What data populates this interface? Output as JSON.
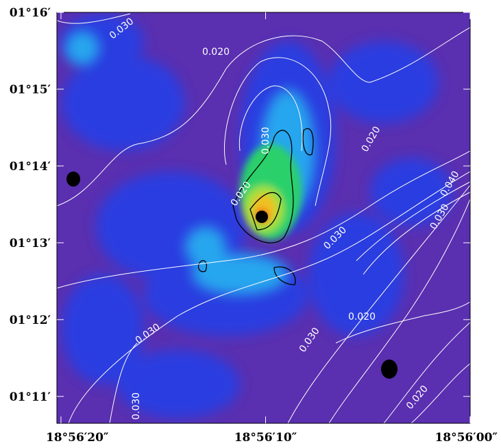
{
  "chart_data": {
    "type": "image",
    "xlim": [
      20.2,
      0
    ],
    "ylim": [
      10.65,
      16
    ],
    "xticks": [
      {
        "value": 20,
        "label": "18°56′20″"
      },
      {
        "value": 10,
        "label": "18°56′10″"
      },
      {
        "value": 0,
        "label": "18°56′00″"
      }
    ],
    "yticks": [
      {
        "value": 16,
        "label": "01°16′"
      },
      {
        "value": 15,
        "label": "01°15′"
      },
      {
        "value": 14,
        "label": "01°14′"
      },
      {
        "value": 13,
        "label": "01°13′"
      },
      {
        "value": 12,
        "label": "01°12′"
      },
      {
        "value": 11,
        "label": "01°11′"
      }
    ],
    "annotations": [
      "0.030",
      "0.020",
      "0.030",
      "0.020",
      "0.020",
      "0.030",
      "0.040",
      "0.030",
      "0.030",
      "0.020",
      "0.030",
      "0.030",
      "0.020"
    ]
  }
}
